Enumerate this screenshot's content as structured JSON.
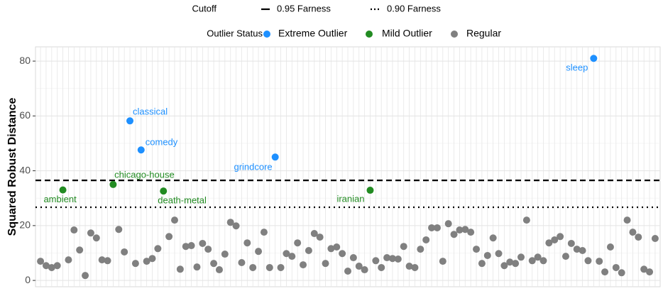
{
  "chart_data": {
    "type": "scatter",
    "y_label": "Squared Robust Distance",
    "legend_title": "Outlier Status",
    "grid": true,
    "xlim": [
      0.1,
      111.9
    ],
    "ylim": [
      -2.3,
      85.2
    ],
    "yticks": [
      0,
      20,
      40,
      60,
      80
    ],
    "cutoffs": {
      "title": "Cutoff",
      "lines": [
        {
          "label": "0.95 Farness",
          "value": 36.5,
          "dash": "dashed"
        },
        {
          "label": "0.90 Farness",
          "value": 26.7,
          "dash": "dotted"
        }
      ]
    },
    "series": [
      {
        "name": "Extreme Outlier",
        "color": "#1e90ff",
        "x": [
          17,
          19,
          43,
          100
        ],
        "values": [
          58.2,
          47.6,
          45,
          81
        ],
        "labels": [
          "classical",
          "comedy",
          "grindcore",
          "sleep"
        ]
      },
      {
        "name": "Mild Outlier",
        "color": "#228b22",
        "x": [
          5,
          14,
          23,
          60
        ],
        "values": [
          33,
          35,
          32.6,
          32.9
        ],
        "labels": [
          "ambient",
          "chicago-house",
          "death-metal",
          "iranian"
        ]
      },
      {
        "name": "Regular",
        "color": "#808080",
        "x": [
          1,
          2,
          3,
          4,
          6,
          7,
          8,
          9,
          10,
          11,
          12,
          13,
          15,
          16,
          18,
          20,
          21,
          22,
          24,
          25,
          26,
          27,
          28,
          29,
          30,
          31,
          32,
          33,
          34,
          35,
          36,
          37,
          38,
          39,
          40,
          41,
          42,
          44,
          45,
          46,
          47,
          48,
          49,
          50,
          51,
          52,
          53,
          54,
          55,
          56,
          57,
          58,
          59,
          61,
          62,
          63,
          64,
          65,
          66,
          67,
          68,
          69,
          70,
          71,
          72,
          73,
          74,
          75,
          76,
          77,
          78,
          79,
          80,
          81,
          82,
          83,
          84,
          85,
          86,
          87,
          88,
          89,
          90,
          91,
          92,
          93,
          94,
          95,
          96,
          97,
          98,
          99,
          101,
          102,
          103,
          104,
          105,
          106,
          107,
          108,
          109,
          110,
          111
        ],
        "values": [
          7.0,
          5.4,
          4.7,
          5.4,
          7.5,
          18.4,
          11.1,
          1.8,
          17.3,
          15.5,
          7.5,
          7.2,
          18.6,
          10.4,
          6.2,
          7.0,
          8.0,
          11.6,
          16.0,
          22.0,
          4.1,
          12.4,
          12.7,
          4.9,
          13.5,
          11.4,
          6.2,
          3.9,
          9.6,
          21.2,
          19.9,
          6.5,
          13.7,
          4.7,
          10.6,
          17.6,
          4.7,
          4.7,
          9.8,
          8.8,
          13.7,
          5.7,
          10.9,
          17.1,
          15.8,
          6.2,
          11.6,
          12.2,
          9.8,
          3.4,
          8.3,
          5.2,
          3.9,
          7.2,
          4.7,
          8.3,
          8.0,
          7.8,
          12.4,
          5.2,
          4.7,
          11.4,
          14.8,
          19.2,
          19.2,
          7.0,
          20.7,
          16.8,
          18.4,
          18.6,
          17.6,
          11.4,
          6.2,
          9.1,
          15.5,
          9.8,
          5.4,
          6.7,
          6.2,
          8.5,
          22.0,
          7.2,
          8.5,
          7.2,
          13.7,
          14.8,
          16.0,
          8.8,
          13.5,
          11.4,
          10.9,
          7.2,
          7.0,
          3.1,
          12.2,
          4.7,
          2.8,
          22.0,
          17.6,
          15.8,
          4.1,
          3.1,
          15.3
        ]
      }
    ]
  }
}
